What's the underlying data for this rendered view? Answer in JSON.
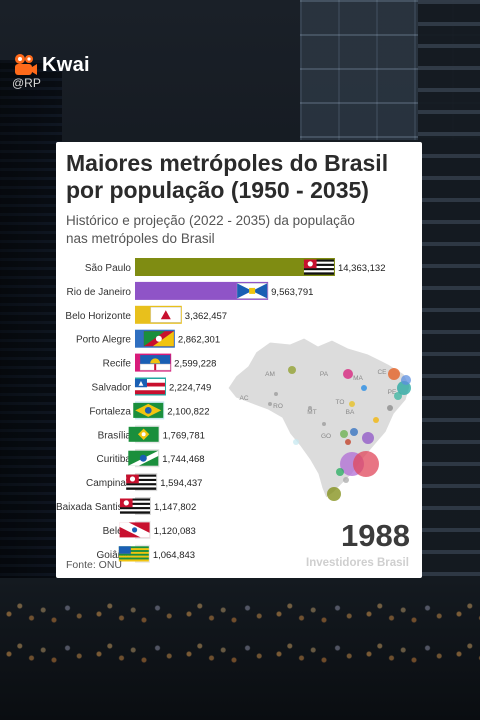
{
  "watermark": {
    "app_name": "Kwai",
    "handle": "@RP"
  },
  "colors": {
    "app_logo": "#ff6a1a"
  },
  "card": {
    "year": "1988",
    "brand": "Investidores Brasil",
    "source": "Fonte: ONU"
  },
  "chart_data": {
    "type": "bar",
    "orientation": "horizontal",
    "title": "Maiores metrópoles do Brasil por população (1950 - 2035)",
    "subtitle": "Histórico e projeção (2022 - 2035) da população nas metrópoles do Brasil",
    "xlim": [
      0,
      15300000
    ],
    "categories": [
      "São Paulo",
      "Rio de Janeiro",
      "Belo Horizonte",
      "Porto Alegre",
      "Recife",
      "Salvador",
      "Fortaleza",
      "Brasília",
      "Curitiba",
      "Campinas",
      "Baixada Santista",
      "Belém",
      "Goiânia"
    ],
    "values": [
      14363132,
      9563791,
      3362457,
      2862301,
      2599228,
      2224749,
      2100822,
      1769781,
      1744468,
      1594437,
      1147802,
      1120083,
      1064843
    ],
    "value_labels": [
      "14,363,132",
      "9,563,791",
      "3,362,457",
      "2,862,301",
      "2,599,228",
      "2,224,749",
      "2,100,822",
      "1,769,781",
      "1,744,468",
      "1,594,437",
      "1,147,802",
      "1,120,083",
      "1,064,843"
    ],
    "bar_colors": [
      "#7f8c12",
      "#8f54c7",
      "#e8c01c",
      "#2f6fc0",
      "#d81b7a",
      "#22a7a0",
      "#c7e8f0",
      "#e8e8e8",
      "#e0e0e0",
      "#dadada",
      "#d8d8d8",
      "#e8e8e8",
      "#e8e8e8"
    ],
    "flags": [
      "flag-sp",
      "flag-rj",
      "flag-mg",
      "flag-rs",
      "flag-pe",
      "flag-ba",
      "flag-ce",
      "flag-df",
      "flag-pr",
      "flag-sp",
      "flag-sp",
      "flag-pa",
      "flag-go"
    ],
    "map_states": [
      "AM",
      "PA",
      "MA",
      "CE",
      "PE",
      "AC",
      "RO",
      "TO",
      "BA",
      "MT",
      "GO"
    ],
    "legend": "none",
    "grid": false
  }
}
